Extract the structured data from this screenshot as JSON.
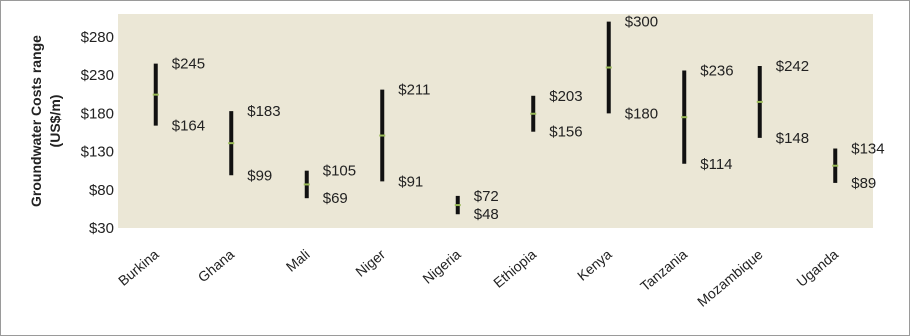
{
  "chart_data": {
    "type": "range",
    "title": "",
    "xlabel": "",
    "ylabel_line1": "Groundwater  Costs range",
    "ylabel_line2": "(US$/m)",
    "ylim": [
      30,
      310
    ],
    "yticks": [
      30,
      80,
      130,
      180,
      230,
      280
    ],
    "ytick_labels": [
      "$30",
      "$80",
      "$130",
      "$180",
      "$230",
      "$280"
    ],
    "grid": false,
    "categories": [
      "Burkina",
      "Ghana",
      "Mali",
      "Niger",
      "Nigeria",
      "Ethiopia",
      "Kenya",
      "Tanzania",
      "Mozambique",
      "Uganda"
    ],
    "high": [
      245,
      183,
      105,
      211,
      72,
      203,
      300,
      236,
      242,
      134
    ],
    "low": [
      164,
      99,
      69,
      91,
      48,
      156,
      180,
      114,
      148,
      89
    ],
    "high_labels": [
      "$245",
      "$183",
      "$105",
      "$211",
      "$72",
      "$203",
      "$300",
      "$236",
      "$242",
      "$134"
    ],
    "low_labels": [
      "$164",
      "$99",
      "$69",
      "$91",
      "$48",
      "$156",
      "$180",
      "$114",
      "$148",
      "$89"
    ]
  },
  "colors": {
    "plot_background": "#ebe7d6",
    "range_bar": "#111111",
    "midpoint_marker": "#9bbb59",
    "text": "#222222",
    "frame_border": "#9a9a9a"
  }
}
